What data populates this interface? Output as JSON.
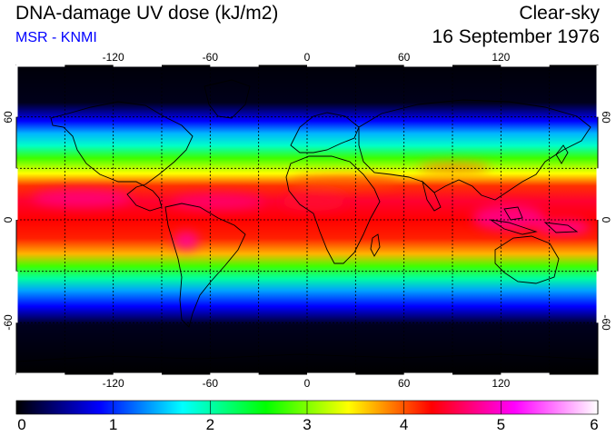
{
  "header": {
    "title": "DNA-damage UV dose (kJ/m2)",
    "subtitle": "MSR - KNMI",
    "condition": "Clear-sky",
    "date": "16 September 1976"
  },
  "map": {
    "projection": "equirectangular",
    "lon_range": [
      -180,
      180
    ],
    "lat_range": [
      -90,
      90
    ],
    "grid_lon": [
      -150,
      -120,
      -90,
      -60,
      -30,
      0,
      30,
      60,
      90,
      120,
      150
    ],
    "grid_lat": [
      -60,
      -30,
      0,
      30,
      60
    ],
    "top_lon_labels": [
      "-120",
      "-60",
      "0",
      "60",
      "120"
    ],
    "bottom_lon_labels": [
      "-120",
      "-60",
      "0",
      "60",
      "120"
    ],
    "lon_label_values": [
      -120,
      -60,
      0,
      60,
      120
    ],
    "left_lat_labels": [
      "60",
      "0",
      "-60"
    ],
    "right_lat_labels": [
      "60",
      "0",
      "-60"
    ],
    "lat_label_values": [
      60,
      0,
      -60
    ]
  },
  "colorbar": {
    "min": 0,
    "max": 6,
    "tick_labels": [
      "0",
      "1",
      "2",
      "3",
      "4",
      "5",
      "6"
    ],
    "tick_values": [
      0,
      1,
      2,
      3,
      4,
      5,
      6
    ],
    "colors": [
      "#000000",
      "#0000ff",
      "#00ffff",
      "#00ff00",
      "#ffff00",
      "#ff0000",
      "#ff00ff",
      "#ffffff"
    ]
  }
}
